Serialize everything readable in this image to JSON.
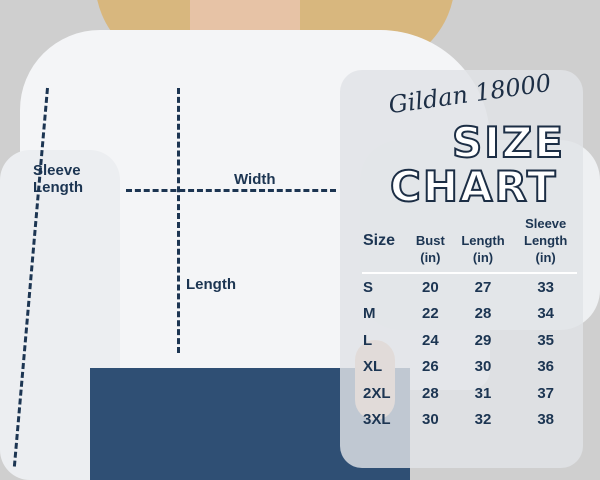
{
  "brand": "Gildan 18000",
  "title_line1": "SIZE",
  "title_line2": "CHART",
  "measure_labels": {
    "sleeve_line1": "Sleeve",
    "sleeve_line2": "Length",
    "width": "Width",
    "length": "Length"
  },
  "table": {
    "headers": [
      [
        "Size",
        ""
      ],
      [
        "Bust",
        "(in)"
      ],
      [
        "Length",
        "(in)"
      ],
      [
        "Sleeve Length",
        "(in)"
      ]
    ],
    "rows": [
      [
        "S",
        "20",
        "27",
        "33"
      ],
      [
        "M",
        "22",
        "28",
        "34"
      ],
      [
        "L",
        "24",
        "29",
        "35"
      ],
      [
        "XL",
        "26",
        "30",
        "36"
      ],
      [
        "2XL",
        "28",
        "31",
        "37"
      ],
      [
        "3XL",
        "30",
        "32",
        "38"
      ]
    ]
  },
  "colors": {
    "text": "#1c3552",
    "background": "#cfcfcf"
  }
}
